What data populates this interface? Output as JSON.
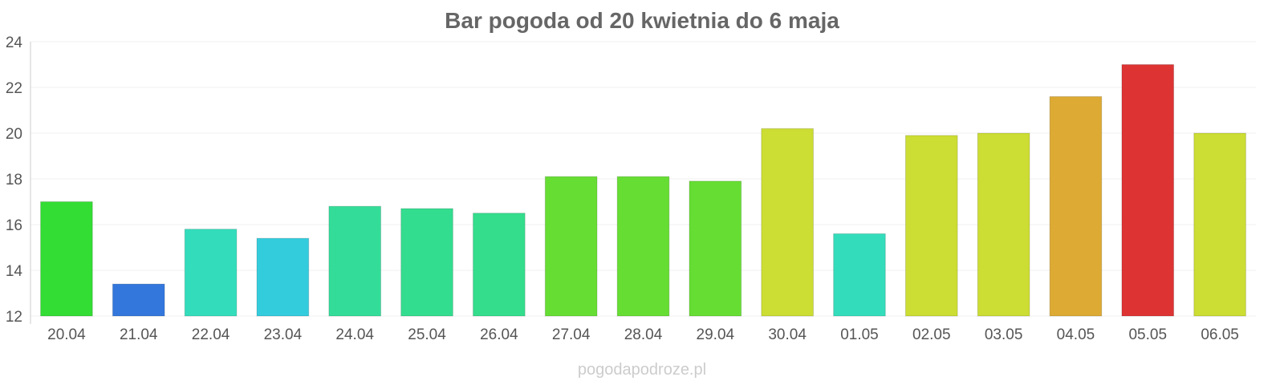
{
  "chart_data": {
    "type": "bar",
    "title": "Bar pogoda od 20 kwietnia do 6 maja",
    "xlabel": "",
    "ylabel": "",
    "ylim": [
      12,
      24
    ],
    "yticks": [
      "12",
      "14",
      "16",
      "18",
      "20",
      "22",
      "24"
    ],
    "grid": true,
    "legend": "none",
    "categories": [
      "20.04",
      "21.04",
      "22.04",
      "23.04",
      "24.04",
      "25.04",
      "26.04",
      "27.04",
      "28.04",
      "29.04",
      "30.04",
      "01.05",
      "02.05",
      "03.05",
      "04.05",
      "05.05",
      "06.05"
    ],
    "values": [
      17.0,
      13.4,
      15.8,
      15.4,
      16.8,
      16.7,
      16.5,
      18.1,
      18.1,
      17.9,
      20.2,
      15.6,
      19.9,
      20.0,
      21.6,
      23.0,
      20.0
    ],
    "colors": [
      "#33dd33",
      "#3377dd",
      "#33ddbb",
      "#33ccdd",
      "#33dd99",
      "#33dd8f",
      "#33dd8c",
      "#66dd33",
      "#66dd33",
      "#66dd33",
      "#ccdd33",
      "#33ddbb",
      "#ccdd33",
      "#ccdd33",
      "#ddaa33",
      "#dd3333",
      "#ccdd33"
    ]
  },
  "watermark": "pogodapodroze.pl"
}
